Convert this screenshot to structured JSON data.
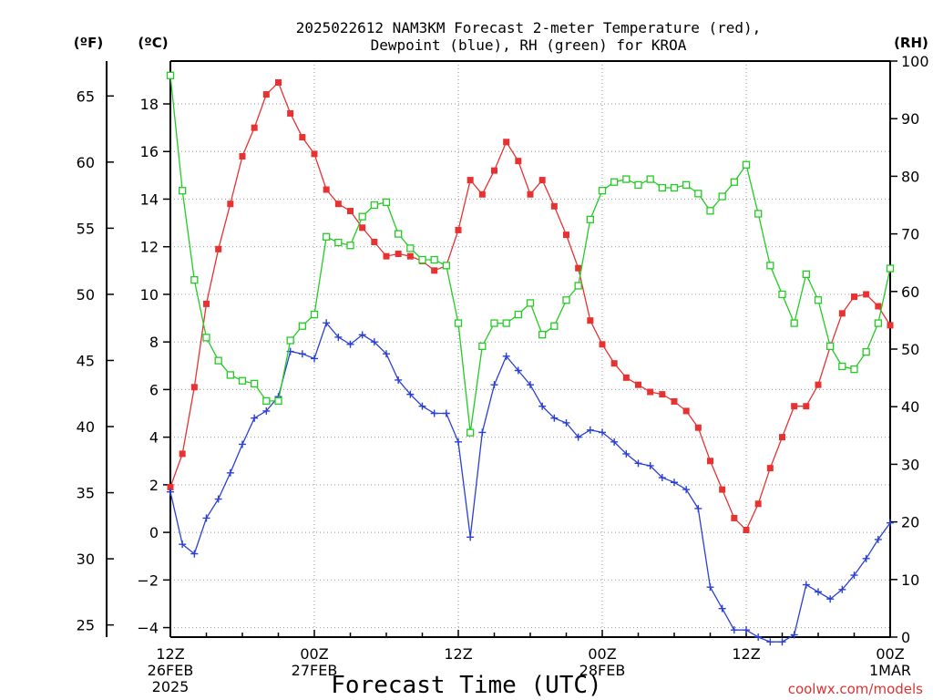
{
  "title": {
    "line1": "2025022612 NAM3KM Forecast 2-meter Temperature (red),",
    "line2": "Dewpoint (blue), RH (green) for KROA"
  },
  "watermark": "coolwx.com/models",
  "colors": {
    "temperature": "#e83232",
    "dewpoint": "#2a3fd6",
    "rh": "#22cc22",
    "grid": "#a8a8a8",
    "axis": "#000000",
    "watermark": "#e03030"
  },
  "chart_data": {
    "type": "line",
    "x_axis": {
      "label": "Forecast Time (UTC)",
      "range_hours": [
        0,
        60
      ],
      "ticks": [
        {
          "hour": 0,
          "line1": "12Z",
          "line2": "26FEB",
          "line3": "2025"
        },
        {
          "hour": 12,
          "line1": "00Z",
          "line2": "27FEB",
          "line3": ""
        },
        {
          "hour": 24,
          "line1": "12Z",
          "line2": "",
          "line3": ""
        },
        {
          "hour": 36,
          "line1": "00Z",
          "line2": "28FEB",
          "line3": ""
        },
        {
          "hour": 48,
          "line1": "12Z",
          "line2": "",
          "line3": ""
        },
        {
          "hour": 60,
          "line1": "00Z",
          "line2": "1MAR",
          "line3": ""
        }
      ]
    },
    "y_axes": {
      "celsius": {
        "unit_label": "(ºC)",
        "range": [
          -4.4,
          19.8
        ],
        "ticks": [
          -4,
          -2,
          0,
          2,
          4,
          6,
          8,
          10,
          12,
          14,
          16,
          18
        ]
      },
      "fahrenheit": {
        "unit_label": "(ºF)",
        "ticks": [
          25,
          30,
          35,
          40,
          45,
          50,
          55,
          60,
          65
        ]
      },
      "rh": {
        "unit_label": "(RH)",
        "range": [
          0,
          100
        ],
        "ticks": [
          0,
          10,
          20,
          30,
          40,
          50,
          60,
          70,
          80,
          90,
          100
        ]
      }
    },
    "grid": true,
    "series": [
      {
        "key": "temperature",
        "unit": "C",
        "marker": "filled-square",
        "hours": [
          0,
          1,
          2,
          3,
          4,
          5,
          6,
          7,
          8,
          9,
          10,
          11,
          12,
          13,
          14,
          15,
          16,
          17,
          18,
          19,
          20,
          21,
          22,
          23,
          24,
          25,
          26,
          27,
          28,
          29,
          30,
          31,
          32,
          33,
          34,
          35,
          36,
          37,
          38,
          39,
          40,
          41,
          42,
          43,
          44,
          45,
          46,
          47,
          48,
          49,
          50,
          51,
          52,
          53,
          54,
          55,
          56,
          57,
          58,
          59,
          60
        ],
        "values": [
          1.9,
          3.3,
          6.1,
          9.6,
          11.9,
          13.8,
          15.8,
          17.0,
          18.4,
          18.9,
          17.6,
          16.6,
          15.9,
          14.4,
          13.8,
          13.5,
          12.8,
          12.2,
          11.6,
          11.7,
          11.6,
          11.4,
          11.0,
          11.2,
          12.7,
          14.8,
          14.2,
          15.2,
          16.4,
          15.6,
          14.2,
          14.8,
          13.7,
          12.5,
          11.1,
          8.9,
          7.9,
          7.1,
          6.5,
          6.2,
          5.9,
          5.8,
          5.5,
          5.1,
          4.4,
          3.0,
          1.8,
          0.6,
          0.1,
          1.2,
          2.7,
          4.0,
          5.3,
          5.3,
          6.2,
          7.8,
          9.2,
          9.9,
          10.0,
          9.5,
          8.7
        ]
      },
      {
        "key": "dewpoint",
        "unit": "C",
        "marker": "plus",
        "hours": [
          0,
          1,
          2,
          3,
          4,
          5,
          6,
          7,
          8,
          9,
          10,
          11,
          12,
          13,
          14,
          15,
          16,
          17,
          18,
          19,
          20,
          21,
          22,
          23,
          24,
          25,
          26,
          27,
          28,
          29,
          30,
          31,
          32,
          33,
          34,
          35,
          36,
          37,
          38,
          39,
          40,
          41,
          42,
          43,
          44,
          45,
          46,
          47,
          48,
          49,
          50,
          51,
          52,
          53,
          54,
          55,
          56,
          57,
          58,
          59,
          60
        ],
        "values": [
          1.7,
          -0.5,
          -0.9,
          0.6,
          1.4,
          2.5,
          3.7,
          4.8,
          5.1,
          5.7,
          7.6,
          7.5,
          7.3,
          8.8,
          8.2,
          7.9,
          8.3,
          8.0,
          7.5,
          6.4,
          5.8,
          5.3,
          5.0,
          5.0,
          3.8,
          -0.2,
          4.2,
          6.2,
          7.4,
          6.8,
          6.2,
          5.3,
          4.8,
          4.6,
          4.0,
          4.3,
          4.2,
          3.8,
          3.3,
          2.9,
          2.8,
          2.3,
          2.1,
          1.8,
          1.0,
          -2.3,
          -3.2,
          -4.1,
          -4.1,
          -4.4,
          -4.6,
          -4.6,
          -4.3,
          -2.2,
          -2.5,
          -2.8,
          -2.4,
          -1.8,
          -1.1,
          -0.3,
          0.4
        ]
      },
      {
        "key": "rh",
        "unit": "%",
        "marker": "open-square",
        "hours": [
          0,
          1,
          2,
          3,
          4,
          5,
          6,
          7,
          8,
          9,
          10,
          11,
          12,
          13,
          14,
          15,
          16,
          17,
          18,
          19,
          20,
          21,
          22,
          23,
          24,
          25,
          26,
          27,
          28,
          29,
          30,
          31,
          32,
          33,
          34,
          35,
          36,
          37,
          38,
          39,
          40,
          41,
          42,
          43,
          44,
          45,
          46,
          47,
          48,
          49,
          50,
          51,
          52,
          53,
          54,
          55,
          56,
          57,
          58,
          59,
          60
        ],
        "values": [
          97.5,
          77.5,
          62.0,
          52.0,
          48.0,
          45.5,
          44.5,
          44.0,
          41.0,
          41.0,
          51.5,
          54.0,
          56.0,
          69.5,
          68.5,
          68.0,
          73.0,
          75.0,
          75.5,
          70.0,
          67.5,
          65.5,
          65.5,
          64.5,
          54.5,
          35.5,
          50.5,
          54.5,
          54.5,
          56.0,
          58.0,
          52.5,
          54.0,
          58.5,
          61.0,
          72.5,
          77.5,
          79.0,
          79.5,
          78.5,
          79.5,
          78.0,
          78.0,
          78.5,
          77.0,
          74.0,
          76.5,
          79.0,
          82.0,
          73.5,
          64.5,
          59.5,
          54.5,
          63.0,
          58.5,
          50.5,
          47.0,
          46.5,
          49.5,
          54.5,
          64.0
        ]
      }
    ]
  }
}
